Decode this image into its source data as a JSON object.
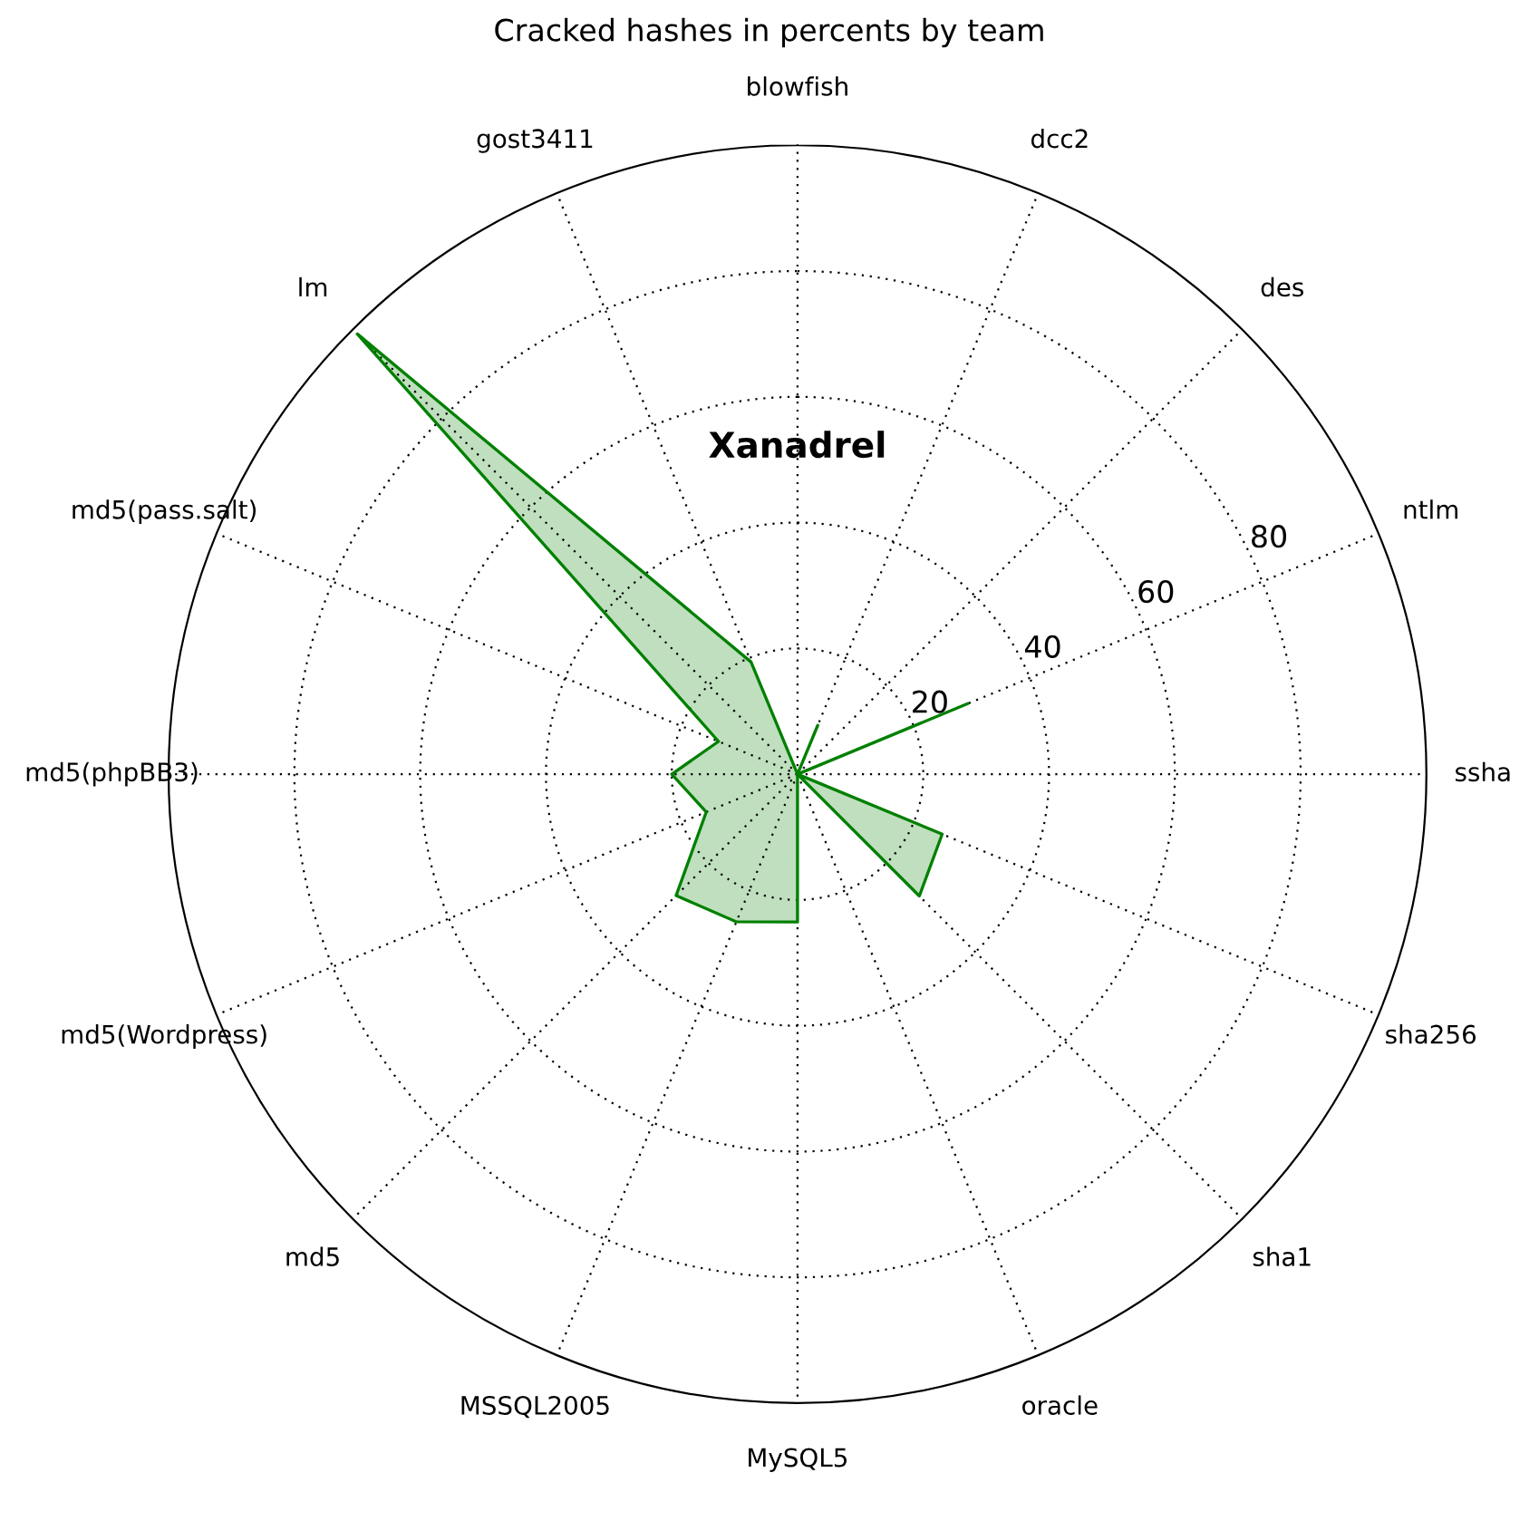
{
  "chart_data": {
    "type": "radar",
    "title": "Cracked hashes in percents by team",
    "subtitle": "Xanadrel",
    "categories": [
      "blowfish",
      "dcc2",
      "des",
      "ntlm",
      "ssha",
      "sha256",
      "sha1",
      "oracle",
      "MySQL5",
      "MSSQL2005",
      "md5",
      "md5(Wordpress)",
      "md5(phpBB3)",
      "md5(pass.salt)",
      "lm",
      "gost3411"
    ],
    "series": [
      {
        "color": "#008000",
        "values": [
          0,
          8.4,
          0,
          29.3,
          0,
          24.9,
          27.4,
          0,
          23.5,
          25.4,
          27.3,
          15.7,
          20,
          13.6,
          99,
          19.3
        ]
      }
    ],
    "ylim": [
      0,
      100
    ],
    "yticks": [
      20,
      40,
      60,
      80
    ],
    "grid": true,
    "legend": false
  }
}
